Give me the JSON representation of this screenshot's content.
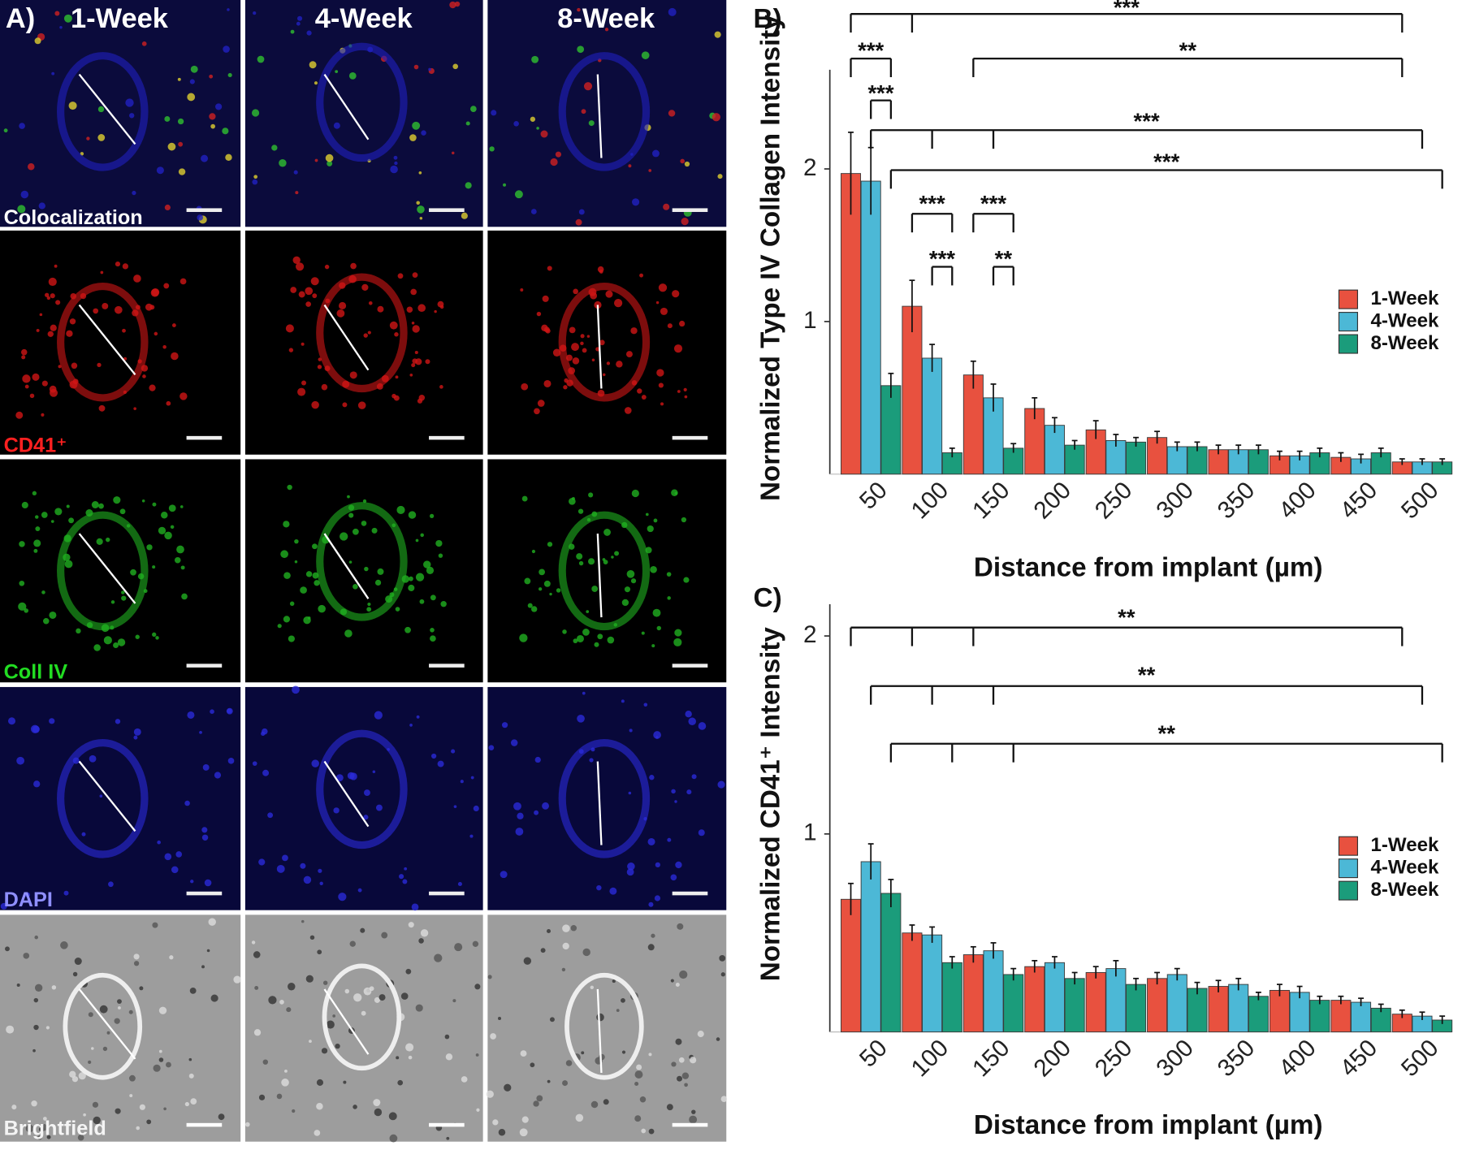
{
  "panel_a": {
    "label": "A)",
    "columns": [
      "1-Week",
      "4-Week",
      "8-Week"
    ],
    "rows": [
      "Colocalization",
      "CD41⁺",
      "Coll IV",
      "DAPI",
      "Brightfield"
    ]
  },
  "chart_data": [
    {
      "type": "bar",
      "label": "B)",
      "ylabel": "Normalized Type IV Collagen Intensity",
      "xlabel": "Distance from implant (µm)",
      "categories": [
        "50",
        "100",
        "150",
        "200",
        "250",
        "300",
        "350",
        "400",
        "450",
        "500"
      ],
      "series": [
        {
          "name": "1-Week",
          "color": "#e8513f",
          "values": [
            1.97,
            1.1,
            0.65,
            0.43,
            0.29,
            0.24,
            0.16,
            0.12,
            0.11,
            0.08
          ],
          "errors": [
            0.27,
            0.17,
            0.09,
            0.07,
            0.06,
            0.04,
            0.03,
            0.03,
            0.03,
            0.02
          ]
        },
        {
          "name": "4-Week",
          "color": "#4cb8d6",
          "values": [
            1.92,
            0.76,
            0.5,
            0.32,
            0.22,
            0.18,
            0.16,
            0.12,
            0.1,
            0.08
          ],
          "errors": [
            0.22,
            0.09,
            0.09,
            0.05,
            0.04,
            0.03,
            0.03,
            0.03,
            0.03,
            0.02
          ]
        },
        {
          "name": "8-Week",
          "color": "#1b9c7b",
          "values": [
            0.58,
            0.14,
            0.17,
            0.19,
            0.21,
            0.18,
            0.16,
            0.14,
            0.14,
            0.08
          ],
          "errors": [
            0.08,
            0.03,
            0.03,
            0.03,
            0.03,
            0.03,
            0.03,
            0.03,
            0.03,
            0.02
          ]
        }
      ],
      "ylim": [
        0,
        2.65
      ],
      "yticks": [
        1,
        2
      ],
      "legend": "right",
      "annotations": [
        "***",
        "***",
        "***",
        "**",
        "***",
        "***",
        "***",
        "***",
        "***",
        "**"
      ]
    },
    {
      "type": "bar",
      "label": "C)",
      "ylabel": "Normalized CD41⁺ Intensity",
      "xlabel": "Distance from implant (µm)",
      "categories": [
        "50",
        "100",
        "150",
        "200",
        "250",
        "300",
        "350",
        "400",
        "450",
        "500"
      ],
      "series": [
        {
          "name": "1-Week",
          "color": "#e8513f",
          "values": [
            0.67,
            0.5,
            0.39,
            0.33,
            0.3,
            0.27,
            0.23,
            0.21,
            0.16,
            0.09
          ],
          "errors": [
            0.08,
            0.04,
            0.04,
            0.03,
            0.03,
            0.03,
            0.03,
            0.03,
            0.02,
            0.02
          ]
        },
        {
          "name": "4-Week",
          "color": "#4cb8d6",
          "values": [
            0.86,
            0.49,
            0.41,
            0.35,
            0.32,
            0.29,
            0.24,
            0.2,
            0.15,
            0.08
          ],
          "errors": [
            0.09,
            0.04,
            0.04,
            0.03,
            0.04,
            0.03,
            0.03,
            0.03,
            0.02,
            0.02
          ]
        },
        {
          "name": "8-Week",
          "color": "#1b9c7b",
          "values": [
            0.7,
            0.35,
            0.29,
            0.27,
            0.24,
            0.22,
            0.18,
            0.16,
            0.12,
            0.06
          ],
          "errors": [
            0.07,
            0.03,
            0.03,
            0.03,
            0.03,
            0.03,
            0.02,
            0.02,
            0.02,
            0.02
          ]
        }
      ],
      "ylim": [
        0,
        2.16
      ],
      "yticks": [
        1,
        2
      ],
      "legend": "right",
      "annotations": [
        "**",
        "**",
        "**"
      ]
    }
  ]
}
